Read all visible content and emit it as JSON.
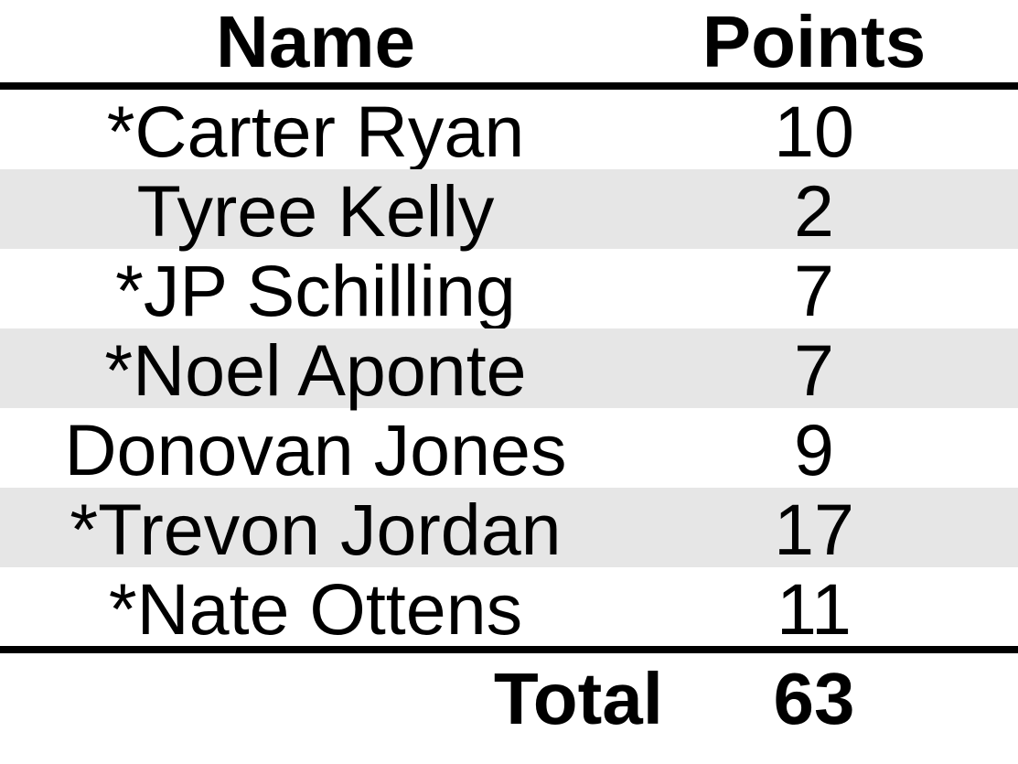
{
  "header": {
    "name_label": "Name",
    "points_label": "Points"
  },
  "rows": [
    {
      "name": "*Carter Ryan",
      "points": "10"
    },
    {
      "name": "Tyree Kelly",
      "points": "2"
    },
    {
      "name": "*JP Schilling",
      "points": "7"
    },
    {
      "name": "*Noel Aponte",
      "points": "7"
    },
    {
      "name": "Donovan Jones",
      "points": "9"
    },
    {
      "name": "*Trevon Jordan",
      "points": "17"
    },
    {
      "name": "*Nate Ottens",
      "points": "11"
    }
  ],
  "total": {
    "label": "Total",
    "value": "63"
  },
  "colors": {
    "shade": "#e6e6e6",
    "rule": "#000000"
  }
}
